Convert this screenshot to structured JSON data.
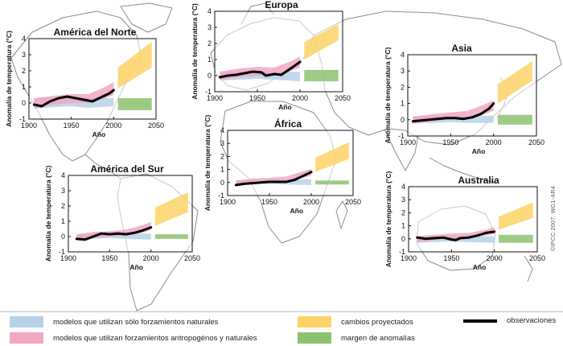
{
  "copyright": "©IPCC 2007: WG1-AR4",
  "legend": {
    "natural": "modelos que utilizan sólo forzamientos naturales",
    "anthro": "modelos que utilizan forzamientos antropogénos y naturales",
    "projected": "cambios proyectados",
    "range": "margen de anomalías",
    "obs": "observaciones"
  },
  "colors": {
    "natural": "#b7d1e8",
    "anthro": "#f2a7c3",
    "projected": "#fdd266",
    "range": "#8dc26e",
    "obs": "#000000",
    "map": "#8c8c8c"
  },
  "chart_data": [
    {
      "type": "line",
      "title": "América del Norte",
      "xlabel": "Año",
      "ylabel": "Anomalía de temperatura (°C)",
      "xlim": [
        1900,
        2050
      ],
      "ylim": [
        -1,
        4
      ],
      "xticks": [
        1900,
        1950,
        2000,
        2050
      ],
      "yticks": [
        -1,
        0,
        1,
        2,
        3,
        4
      ],
      "natural_band": {
        "x": [
          1906,
          1930,
          1950,
          1970,
          2000
        ],
        "lo": [
          -0.35,
          -0.25,
          -0.2,
          -0.3,
          -0.2
        ],
        "hi": [
          0.3,
          0.35,
          0.35,
          0.3,
          0.3
        ]
      },
      "anthro_band": {
        "x": [
          1906,
          1930,
          1950,
          1970,
          1990,
          2000
        ],
        "lo": [
          -0.3,
          -0.1,
          0.0,
          0.0,
          0.3,
          0.5
        ],
        "hi": [
          0.3,
          0.45,
          0.55,
          0.55,
          1.0,
          1.3
        ]
      },
      "observations": {
        "x": [
          1906,
          1915,
          1925,
          1935,
          1945,
          1955,
          1965,
          1975,
          1985,
          1995,
          2000
        ],
        "y": [
          -0.1,
          -0.2,
          0.1,
          0.3,
          0.4,
          0.3,
          0.2,
          0.1,
          0.35,
          0.6,
          0.8
        ]
      },
      "projected": {
        "x": [
          2005,
          2045
        ],
        "lo": [
          0.9,
          2.2
        ],
        "hi": [
          2.2,
          3.8
        ]
      },
      "anomaly_range": {
        "x": [
          2005,
          2045
        ],
        "lo": [
          -0.45,
          -0.45
        ],
        "hi": [
          0.3,
          0.3
        ]
      }
    },
    {
      "type": "line",
      "title": "Europa",
      "xlabel": "Año",
      "ylabel": "Anomalía de temperatura (°C)",
      "xlim": [
        1900,
        2050
      ],
      "ylim": [
        -1,
        4
      ],
      "xticks": [
        1900,
        1950,
        2000,
        2050
      ],
      "yticks": [
        -1,
        0,
        1,
        2,
        3,
        4
      ],
      "natural_band": {
        "x": [
          1906,
          1930,
          1950,
          1970,
          2000
        ],
        "lo": [
          -0.3,
          -0.25,
          -0.2,
          -0.25,
          -0.35
        ],
        "hi": [
          0.2,
          0.3,
          0.3,
          0.25,
          0.25
        ]
      },
      "anthro_band": {
        "x": [
          1906,
          1930,
          1950,
          1970,
          1990,
          2000
        ],
        "lo": [
          -0.25,
          -0.1,
          0.0,
          0.0,
          0.3,
          0.5
        ],
        "hi": [
          0.25,
          0.45,
          0.55,
          0.5,
          0.9,
          1.2
        ]
      },
      "observations": {
        "x": [
          1906,
          1915,
          1925,
          1935,
          1945,
          1955,
          1960,
          1970,
          1978,
          1985,
          1992,
          2000
        ],
        "y": [
          -0.1,
          0.0,
          0.05,
          0.15,
          0.25,
          0.2,
          0.0,
          0.1,
          0.05,
          0.3,
          0.55,
          0.85
        ]
      },
      "projected": {
        "x": [
          2005,
          2045
        ],
        "lo": [
          1.0,
          2.2
        ],
        "hi": [
          2.1,
          3.2
        ]
      },
      "anomaly_range": {
        "x": [
          2005,
          2045
        ],
        "lo": [
          -0.35,
          -0.35
        ],
        "hi": [
          0.35,
          0.35
        ]
      }
    },
    {
      "type": "line",
      "title": "Asia",
      "xlabel": "Año",
      "ylabel": "Anomalía de temperatura (°C)",
      "xlim": [
        1900,
        2050
      ],
      "ylim": [
        -1,
        4
      ],
      "xticks": [
        1900,
        1950,
        2000,
        2050
      ],
      "yticks": [
        -1,
        0,
        1,
        2,
        3,
        4
      ],
      "natural_band": {
        "x": [
          1906,
          1930,
          1950,
          1970,
          2000
        ],
        "lo": [
          -0.25,
          -0.2,
          -0.15,
          -0.2,
          -0.2
        ],
        "hi": [
          0.2,
          0.25,
          0.25,
          0.25,
          0.25
        ]
      },
      "anthro_band": {
        "x": [
          1906,
          1930,
          1950,
          1970,
          1990,
          2000
        ],
        "lo": [
          -0.25,
          -0.1,
          0.0,
          0.05,
          0.35,
          0.55
        ],
        "hi": [
          0.2,
          0.35,
          0.45,
          0.55,
          0.95,
          1.2
        ]
      },
      "observations": {
        "x": [
          1906,
          1915,
          1925,
          1935,
          1945,
          1955,
          1965,
          1975,
          1985,
          1995,
          2000
        ],
        "y": [
          -0.1,
          -0.05,
          0.0,
          0.05,
          0.1,
          0.1,
          0.05,
          0.15,
          0.35,
          0.7,
          1.0
        ]
      },
      "projected": {
        "x": [
          2005,
          2045
        ],
        "lo": [
          1.0,
          2.4
        ],
        "hi": [
          2.2,
          3.6
        ]
      },
      "anomaly_range": {
        "x": [
          2005,
          2045
        ],
        "lo": [
          -0.3,
          -0.3
        ],
        "hi": [
          0.3,
          0.3
        ]
      }
    },
    {
      "type": "line",
      "title": "África",
      "xlabel": "Año",
      "ylabel": "Anomalía de temperatura (°C)",
      "xlim": [
        1900,
        2050
      ],
      "ylim": [
        -1,
        4
      ],
      "xticks": [
        1900,
        1950,
        2000,
        2050
      ],
      "yticks": [
        -1,
        0,
        1,
        2,
        3,
        4
      ],
      "natural_band": {
        "x": [
          1910,
          1930,
          1950,
          1970,
          2000
        ],
        "lo": [
          -0.2,
          -0.15,
          -0.1,
          -0.15,
          -0.2
        ],
        "hi": [
          0.15,
          0.2,
          0.2,
          0.2,
          0.25
        ]
      },
      "anthro_band": {
        "x": [
          1910,
          1930,
          1950,
          1970,
          1990,
          2000
        ],
        "lo": [
          -0.2,
          -0.1,
          0.0,
          0.05,
          0.35,
          0.55
        ],
        "hi": [
          0.15,
          0.3,
          0.35,
          0.45,
          0.85,
          1.05
        ]
      },
      "observations": {
        "x": [
          1910,
          1920,
          1930,
          1940,
          1950,
          1960,
          1970,
          1980,
          1990,
          2000
        ],
        "y": [
          -0.2,
          -0.1,
          -0.05,
          0.0,
          0.05,
          0.05,
          0.05,
          0.2,
          0.5,
          0.8
        ]
      },
      "projected": {
        "x": [
          2005,
          2045
        ],
        "lo": [
          0.8,
          1.8
        ],
        "hi": [
          1.9,
          3.1
        ]
      },
      "anomaly_range": {
        "x": [
          2005,
          2045
        ],
        "lo": [
          -0.15,
          -0.15
        ],
        "hi": [
          0.15,
          0.15
        ]
      }
    },
    {
      "type": "line",
      "title": "América del Sur",
      "xlabel": "Año",
      "ylabel": "Anomalía de temperatura (°C)",
      "xlim": [
        1900,
        2050
      ],
      "ylim": [
        -1,
        4
      ],
      "xticks": [
        1900,
        1950,
        2000,
        2050
      ],
      "yticks": [
        -1,
        0,
        1,
        2,
        3,
        4
      ],
      "natural_band": {
        "x": [
          1910,
          1930,
          1950,
          1970,
          2000
        ],
        "lo": [
          -0.2,
          -0.15,
          -0.1,
          -0.15,
          -0.2
        ],
        "hi": [
          0.15,
          0.2,
          0.2,
          0.2,
          0.2
        ]
      },
      "anthro_band": {
        "x": [
          1910,
          1930,
          1950,
          1970,
          1990,
          2000
        ],
        "lo": [
          -0.2,
          -0.1,
          0.0,
          0.05,
          0.25,
          0.45
        ],
        "hi": [
          0.15,
          0.3,
          0.35,
          0.45,
          0.75,
          0.95
        ]
      },
      "observations": {
        "x": [
          1910,
          1920,
          1930,
          1940,
          1950,
          1960,
          1970,
          1980,
          1990,
          2000
        ],
        "y": [
          -0.15,
          -0.2,
          0.0,
          0.2,
          0.15,
          0.2,
          0.15,
          0.25,
          0.4,
          0.6
        ]
      },
      "projected": {
        "x": [
          2005,
          2045
        ],
        "lo": [
          0.7,
          1.6
        ],
        "hi": [
          1.9,
          2.9
        ]
      },
      "anomaly_range": {
        "x": [
          2005,
          2045
        ],
        "lo": [
          -0.15,
          -0.15
        ],
        "hi": [
          0.15,
          0.15
        ]
      }
    },
    {
      "type": "line",
      "title": "Australia",
      "xlabel": "Año",
      "ylabel": "Anomalía de temperatura (°C)",
      "xlim": [
        1900,
        2050
      ],
      "ylim": [
        -1,
        4
      ],
      "xticks": [
        1900,
        1950,
        2000,
        2050
      ],
      "yticks": [
        -1,
        0,
        1,
        2,
        3,
        4
      ],
      "natural_band": {
        "x": [
          1910,
          1930,
          1950,
          1970,
          2000
        ],
        "lo": [
          -0.3,
          -0.25,
          -0.2,
          -0.25,
          -0.3
        ],
        "hi": [
          0.2,
          0.25,
          0.25,
          0.2,
          0.2
        ]
      },
      "anthro_band": {
        "x": [
          1910,
          1930,
          1950,
          1970,
          1990,
          2000
        ],
        "lo": [
          -0.25,
          -0.1,
          0.0,
          0.05,
          0.25,
          0.4
        ],
        "hi": [
          0.2,
          0.3,
          0.4,
          0.45,
          0.7,
          0.9
        ]
      },
      "observations": {
        "x": [
          1910,
          1920,
          1930,
          1940,
          1950,
          1955,
          1960,
          1970,
          1980,
          1990,
          2000
        ],
        "y": [
          0.1,
          0.0,
          0.05,
          0.1,
          -0.05,
          -0.1,
          0.05,
          0.1,
          0.25,
          0.45,
          0.55
        ]
      },
      "projected": {
        "x": [
          2005,
          2045
        ],
        "lo": [
          0.7,
          1.6
        ],
        "hi": [
          1.7,
          2.8
        ]
      },
      "anomaly_range": {
        "x": [
          2005,
          2045
        ],
        "lo": [
          -0.3,
          -0.3
        ],
        "hi": [
          0.3,
          0.3
        ]
      }
    }
  ]
}
